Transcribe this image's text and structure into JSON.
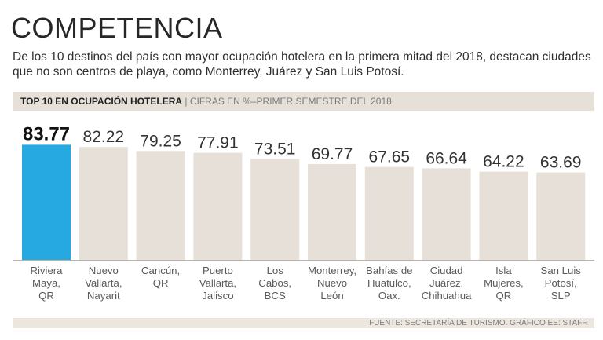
{
  "header": {
    "title": "COMPETENCIA",
    "subtitle": "De los 10 destinos del país con mayor ocupación hotelera en la primera mitad del 2018, destacan ciudades que no son centros de playa, como Monterrey, Juárez y San Luis Potosí."
  },
  "band": {
    "strong": "TOP 10 EN OCUPACIÓN HOTELERA",
    "rest": " | CIFRAS EN %–PRIMER SEMESTRE DEL 2018"
  },
  "footer": {
    "source": "FUENTE: SECRETARÍA DE TURISMO. GRÁFICO EE: STAFF."
  },
  "colors": {
    "highlight": "#26a9e0",
    "bar": "#e7e0d8",
    "axis": "#b9b3ac"
  },
  "chart_data": {
    "type": "bar",
    "title": "TOP 10 EN OCUPACIÓN HOTELERA",
    "ylabel": "CIFRAS EN %",
    "ylim": [
      0,
      100
    ],
    "highlight_index": 0,
    "categories": [
      [
        "Riviera",
        "Maya,",
        "QR"
      ],
      [
        "Nuevo",
        "Vallarta,",
        "Nayarit"
      ],
      [
        "Cancún,",
        "QR"
      ],
      [
        "Puerto",
        "Vallarta,",
        "Jalisco"
      ],
      [
        "Los",
        "Cabos,",
        "BCS"
      ],
      [
        "Monterrey,",
        "Nuevo",
        "León"
      ],
      [
        "Bahías de",
        "Huatulco,",
        "Oax."
      ],
      [
        "Ciudad",
        "Juárez,",
        "Chihuahua"
      ],
      [
        "Isla",
        "Mujeres,",
        "QR"
      ],
      [
        "San Luis",
        "Potosí,",
        "SLP"
      ]
    ],
    "values": [
      83.77,
      82.22,
      79.25,
      77.91,
      73.51,
      69.77,
      67.65,
      66.64,
      64.22,
      63.69
    ],
    "value_labels": [
      "83.77",
      "82.22",
      "79.25",
      "77.91",
      "73.51",
      "69.77",
      "67.65",
      "66.64",
      "64.22",
      "63.69"
    ]
  }
}
